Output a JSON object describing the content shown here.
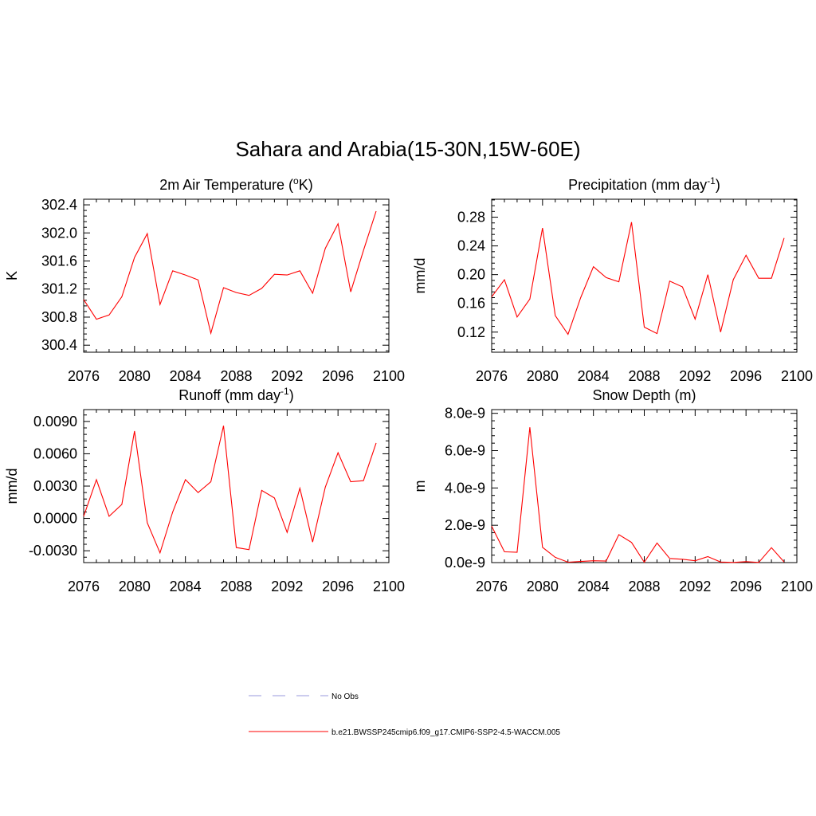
{
  "figure_title": "Sahara and Arabia(15-30N,15W-60E)",
  "legend": [
    {
      "label": "No Obs",
      "color": "#9999dd",
      "style": "dashed"
    },
    {
      "label": "b.e21.BWSSP245cmip6.f09_g17.CMIP6-SSP2-4.5-WACCM.005",
      "color": "#ff0000",
      "style": "solid"
    }
  ],
  "chart_data": [
    {
      "type": "line",
      "title": "2m Air Temperature (",
      "title_sup": "o",
      "title_end": "K)",
      "ylabel": "K",
      "xlim": [
        2076,
        2100
      ],
      "ylim": [
        300.3,
        302.48
      ],
      "x_ticks": [
        2076,
        2080,
        2084,
        2088,
        2092,
        2096,
        2100
      ],
      "y_ticks": [
        "300.4",
        "300.8",
        "301.2",
        "301.6",
        "302.0",
        "302.4"
      ],
      "y_tick_values": [
        300.4,
        300.8,
        301.2,
        301.6,
        302.0,
        302.4
      ],
      "series": [
        {
          "color": "#ff0000",
          "x": [
            2076,
            2077,
            2078,
            2079,
            2080,
            2081,
            2082,
            2083,
            2084,
            2085,
            2086,
            2087,
            2088,
            2089,
            2090,
            2091,
            2092,
            2093,
            2094,
            2095,
            2096,
            2097,
            2098,
            2099
          ],
          "values": [
            301.05,
            300.77,
            300.83,
            301.09,
            301.65,
            301.99,
            300.98,
            301.46,
            301.4,
            301.33,
            300.57,
            301.22,
            301.15,
            301.11,
            301.21,
            301.41,
            301.4,
            301.46,
            301.14,
            301.78,
            302.13,
            301.16,
            301.75,
            302.31
          ]
        }
      ]
    },
    {
      "type": "line",
      "title": "Precipitation (mm day",
      "title_sup": "-1",
      "title_end": ")",
      "ylabel": "mm/d",
      "xlim": [
        2076,
        2100
      ],
      "ylim": [
        0.092,
        0.305
      ],
      "x_ticks": [
        2076,
        2080,
        2084,
        2088,
        2092,
        2096,
        2100
      ],
      "y_ticks": [
        "0.12",
        "0.16",
        "0.20",
        "0.24",
        "0.28"
      ],
      "y_tick_values": [
        0.12,
        0.16,
        0.2,
        0.24,
        0.28
      ],
      "series": [
        {
          "color": "#ff0000",
          "x": [
            2076,
            2077,
            2078,
            2079,
            2080,
            2081,
            2082,
            2083,
            2084,
            2085,
            2086,
            2087,
            2088,
            2089,
            2090,
            2091,
            2092,
            2093,
            2094,
            2095,
            2096,
            2097,
            2098,
            2099
          ],
          "values": [
            0.169,
            0.193,
            0.141,
            0.166,
            0.265,
            0.143,
            0.117,
            0.168,
            0.211,
            0.196,
            0.19,
            0.273,
            0.127,
            0.118,
            0.191,
            0.183,
            0.138,
            0.2,
            0.12,
            0.193,
            0.227,
            0.195,
            0.195,
            0.251
          ]
        }
      ]
    },
    {
      "type": "line",
      "title": "Runoff (mm day",
      "title_sup": "-1",
      "title_end": ")",
      "ylabel": "mm/d",
      "xlim": [
        2076,
        2100
      ],
      "ylim": [
        -0.0041,
        0.0101
      ],
      "x_ticks": [
        2076,
        2080,
        2084,
        2088,
        2092,
        2096,
        2100
      ],
      "y_ticks": [
        "-0.0030",
        "0.0000",
        "0.0030",
        "0.0060",
        "0.0090"
      ],
      "y_tick_values": [
        -0.003,
        0.0,
        0.003,
        0.006,
        0.009
      ],
      "series": [
        {
          "color": "#ff0000",
          "x": [
            2076,
            2077,
            2078,
            2079,
            2080,
            2081,
            2082,
            2083,
            2084,
            2085,
            2086,
            2087,
            2088,
            2089,
            2090,
            2091,
            2092,
            2093,
            2094,
            2095,
            2096,
            2097,
            2098,
            2099
          ],
          "values": [
            0.0002,
            0.0036,
            0.0002,
            0.0013,
            0.0081,
            -0.0004,
            -0.0032,
            0.0006,
            0.0036,
            0.0024,
            0.0034,
            0.0086,
            -0.0027,
            -0.0029,
            0.0026,
            0.0019,
            -0.0013,
            0.0028,
            -0.0022,
            0.0029,
            0.0061,
            0.0034,
            0.0035,
            0.007
          ]
        }
      ]
    },
    {
      "type": "line",
      "title": "Snow Depth (m)",
      "title_sup": "",
      "title_end": "",
      "ylabel": "m",
      "xlim": [
        2076,
        2100
      ],
      "ylim": [
        -0.0,
        8.2e-09
      ],
      "x_ticks": [
        2076,
        2080,
        2084,
        2088,
        2092,
        2096,
        2100
      ],
      "y_ticks": [
        "0.0e-9",
        "2.0e-9",
        "4.0e-9",
        "6.0e-9",
        "8.0e-9"
      ],
      "y_tick_values": [
        0.0,
        2e-09,
        4e-09,
        6e-09,
        8e-09
      ],
      "series": [
        {
          "color": "#ff0000",
          "x": [
            2076,
            2077,
            2078,
            2079,
            2080,
            2081,
            2082,
            2083,
            2084,
            2085,
            2086,
            2087,
            2088,
            2089,
            2090,
            2091,
            2092,
            2093,
            2094,
            2095,
            2096,
            2097,
            2098,
            2099
          ],
          "values": [
            1.95e-09,
            5.8e-10,
            5.5e-10,
            7.25e-09,
            8.2e-10,
            2.8e-10,
            2e-11,
            6e-11,
            1e-10,
            8e-11,
            1.5e-09,
            1.08e-09,
            2e-11,
            1.05e-09,
            2.2e-10,
            1.8e-10,
            1e-10,
            3.2e-10,
            3e-11,
            1e-11,
            5e-11,
            1e-11,
            8e-10,
            3e-11
          ]
        }
      ]
    }
  ]
}
